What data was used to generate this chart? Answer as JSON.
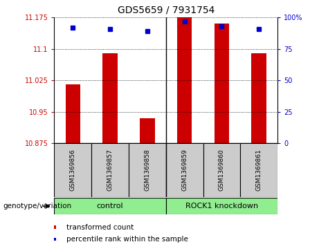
{
  "title": "GDS5659 / 7931754",
  "samples": [
    "GSM1369856",
    "GSM1369857",
    "GSM1369858",
    "GSM1369859",
    "GSM1369860",
    "GSM1369861"
  ],
  "red_values": [
    11.015,
    11.09,
    10.935,
    11.175,
    11.16,
    11.09
  ],
  "blue_values": [
    92,
    91,
    89,
    97,
    93,
    91
  ],
  "ylim_left": [
    10.875,
    11.175
  ],
  "ylim_right": [
    0,
    100
  ],
  "yticks_left": [
    10.875,
    10.95,
    11.025,
    11.1,
    11.175
  ],
  "ytick_labels_left": [
    "10.875",
    "10.95",
    "11.025",
    "11.1",
    "11.175"
  ],
  "yticks_right": [
    0,
    25,
    50,
    75,
    100
  ],
  "ytick_labels_right": [
    "0",
    "25",
    "50",
    "75",
    "100%"
  ],
  "bar_color": "#cc0000",
  "dot_color": "#0000cc",
  "baseline": 10.875,
  "label_color_left": "#cc0000",
  "label_color_right": "#0000cc",
  "sample_bg": "#cccccc",
  "group_bg": "#90EE90",
  "group_border": "#000000",
  "legend_items": [
    {
      "color": "#cc0000",
      "label": "transformed count"
    },
    {
      "color": "#0000cc",
      "label": "percentile rank within the sample"
    }
  ],
  "genotype_label": "genotype/variation",
  "control_label": "control",
  "knockdown_label": "ROCK1 knockdown",
  "fig_width": 4.61,
  "fig_height": 3.63,
  "bar_width": 0.4
}
